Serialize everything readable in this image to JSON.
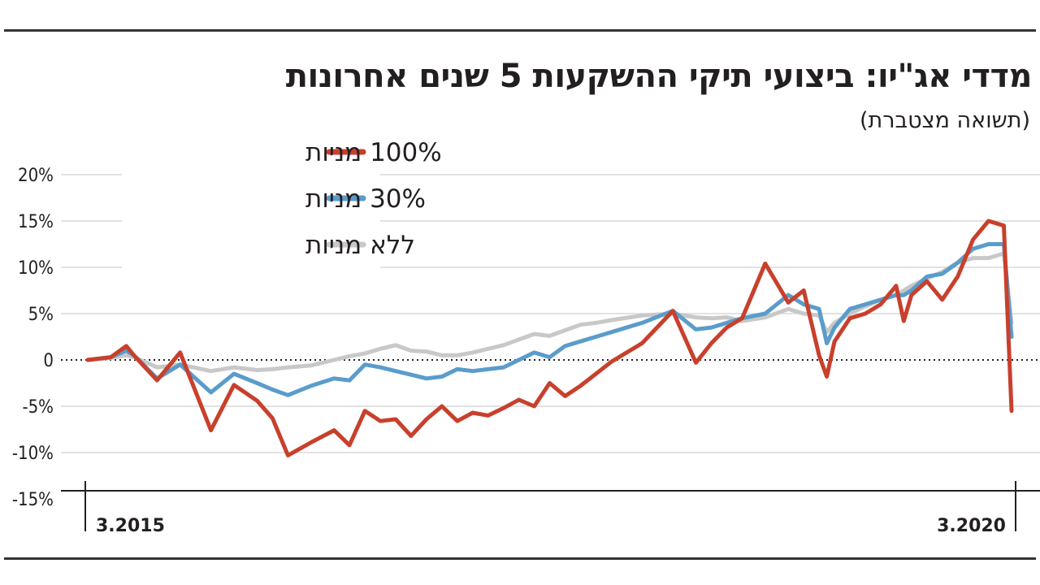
{
  "title": "מדדי אג\"יו: ביצועי תיקי ההשקעות 5 שנים אחרונות",
  "subtitle": "(תשואה מצטברת)",
  "colors": {
    "stocks_100": "#c8402c",
    "stocks_30": "#5a9ccb",
    "stocks_0": "#c8c8c8",
    "grid": "#d9d9d9",
    "text": "#231f20"
  },
  "chart_data": {
    "type": "line",
    "title": "מדדי אג\"יו: ביצועי תיקי ההשקעות 5 שנים אחרונות",
    "subtitle": "(תשואה מצטברת)",
    "xlabel": "",
    "ylabel": "",
    "x_start_label": "3.2015",
    "x_end_label": "3.2020",
    "y_ticks": [
      20,
      15,
      10,
      5,
      0,
      -5,
      -10,
      -15
    ],
    "y_tick_labels": [
      "20%",
      "15%",
      "10%",
      "5%",
      "0",
      "-5%",
      "-10%",
      "-15%"
    ],
    "ylim": [
      -15,
      20
    ],
    "xlim": [
      0,
      60
    ],
    "grid": true,
    "zero_line": "dotted",
    "legend_position": "top-left",
    "series": [
      {
        "name": "100% מניות",
        "label": "100% מניות",
        "color": "#c8402c",
        "x": [
          0,
          1.5,
          2.5,
          3,
          4.5,
          6,
          8,
          9.5,
          11,
          12,
          13,
          14.5,
          16,
          17,
          18,
          19,
          20,
          21,
          22,
          23,
          24,
          25,
          26,
          27,
          28,
          29,
          30,
          31,
          32,
          33,
          34,
          36,
          38,
          39.5,
          40.5,
          41.5,
          42.5,
          44,
          45.5,
          46.5,
          47.5,
          48,
          48.5,
          49.5,
          50.5,
          51.5,
          52.5,
          53,
          53.5,
          54.5,
          55.5,
          56.5,
          57.5,
          58.5,
          59.5,
          60
        ],
        "values": [
          0,
          0.3,
          1.5,
          0.5,
          -2.2,
          0.8,
          -7.6,
          -2.7,
          -4.4,
          -6.3,
          -10.3,
          -8.9,
          -7.6,
          -9.2,
          -5.5,
          -6.6,
          -6.4,
          -8.2,
          -6.4,
          -5.0,
          -6.6,
          -5.7,
          -6.0,
          -5.2,
          -4.3,
          -5.0,
          -2.5,
          -3.9,
          -2.8,
          -1.5,
          -0.2,
          1.8,
          5.3,
          -0.3,
          1.8,
          3.5,
          4.5,
          10.4,
          6.2,
          7.5,
          0.5,
          -1.8,
          2.0,
          4.5,
          5.0,
          6.0,
          8.0,
          4.2,
          7.0,
          8.5,
          6.5,
          9.0,
          13.0,
          15.0,
          14.5,
          -5.5
        ]
      },
      {
        "name": "30% מניות",
        "label": "30% מניות",
        "color": "#5a9ccb",
        "x": [
          0,
          1.5,
          2.5,
          3,
          4.5,
          6,
          8,
          9.5,
          11,
          12,
          13,
          14.5,
          16,
          17,
          18,
          19,
          20,
          21,
          22,
          23,
          24,
          25,
          26,
          27,
          28,
          29,
          30,
          31,
          32,
          33,
          34,
          36,
          38,
          39.5,
          40.5,
          41.5,
          42.5,
          44,
          45.5,
          46.5,
          47.5,
          48,
          48.5,
          49.5,
          50.5,
          51.5,
          52.5,
          53,
          53.5,
          54.5,
          55.5,
          56.5,
          57.5,
          58.5,
          59.5,
          60
        ],
        "values": [
          0,
          0.3,
          1.0,
          0.5,
          -2.0,
          -0.5,
          -3.5,
          -1.5,
          -2.5,
          -3.2,
          -3.8,
          -2.8,
          -2.0,
          -2.2,
          -0.5,
          -0.8,
          -1.2,
          -1.6,
          -2.0,
          -1.8,
          -1.0,
          -1.2,
          -1.0,
          -0.8,
          0.0,
          0.8,
          0.3,
          1.5,
          2.0,
          2.5,
          3.0,
          4.0,
          5.3,
          3.3,
          3.5,
          4.0,
          4.5,
          5.0,
          7.0,
          6.0,
          5.5,
          1.8,
          3.5,
          5.5,
          6.0,
          6.5,
          7.0,
          7.0,
          7.5,
          9.0,
          9.3,
          10.5,
          12.0,
          12.5,
          12.5,
          2.5
        ]
      },
      {
        "name": "ללא מניות",
        "label": "ללא מניות",
        "color": "#c8c8c8",
        "x": [
          0,
          1.5,
          2.5,
          3,
          4.5,
          6,
          8,
          9.5,
          11,
          12,
          13,
          14.5,
          16,
          17,
          18,
          19,
          20,
          21,
          22,
          23,
          24,
          25,
          26,
          27,
          28,
          29,
          30,
          31,
          32,
          33,
          34,
          36,
          38,
          39.5,
          40.5,
          41.5,
          42.5,
          44,
          45.5,
          46.5,
          47.5,
          48,
          48.5,
          49.5,
          50.5,
          51.5,
          52.5,
          53,
          53.5,
          54.5,
          55.5,
          56.5,
          57.5,
          58.5,
          59.5,
          60
        ],
        "values": [
          0,
          0.2,
          0.5,
          0.3,
          -0.8,
          -0.5,
          -1.2,
          -0.8,
          -1.1,
          -1.0,
          -0.8,
          -0.6,
          0.0,
          0.4,
          0.7,
          1.2,
          1.6,
          1.0,
          0.9,
          0.5,
          0.5,
          0.8,
          1.2,
          1.6,
          2.2,
          2.8,
          2.6,
          3.2,
          3.8,
          4.0,
          4.3,
          4.8,
          5.0,
          4.6,
          4.5,
          4.6,
          4.2,
          4.6,
          5.5,
          5.0,
          4.8,
          3.0,
          4.0,
          5.0,
          5.8,
          6.5,
          7.0,
          7.5,
          8.0,
          8.8,
          9.5,
          10.5,
          11.0,
          11.0,
          11.5,
          4.0
        ]
      }
    ]
  }
}
